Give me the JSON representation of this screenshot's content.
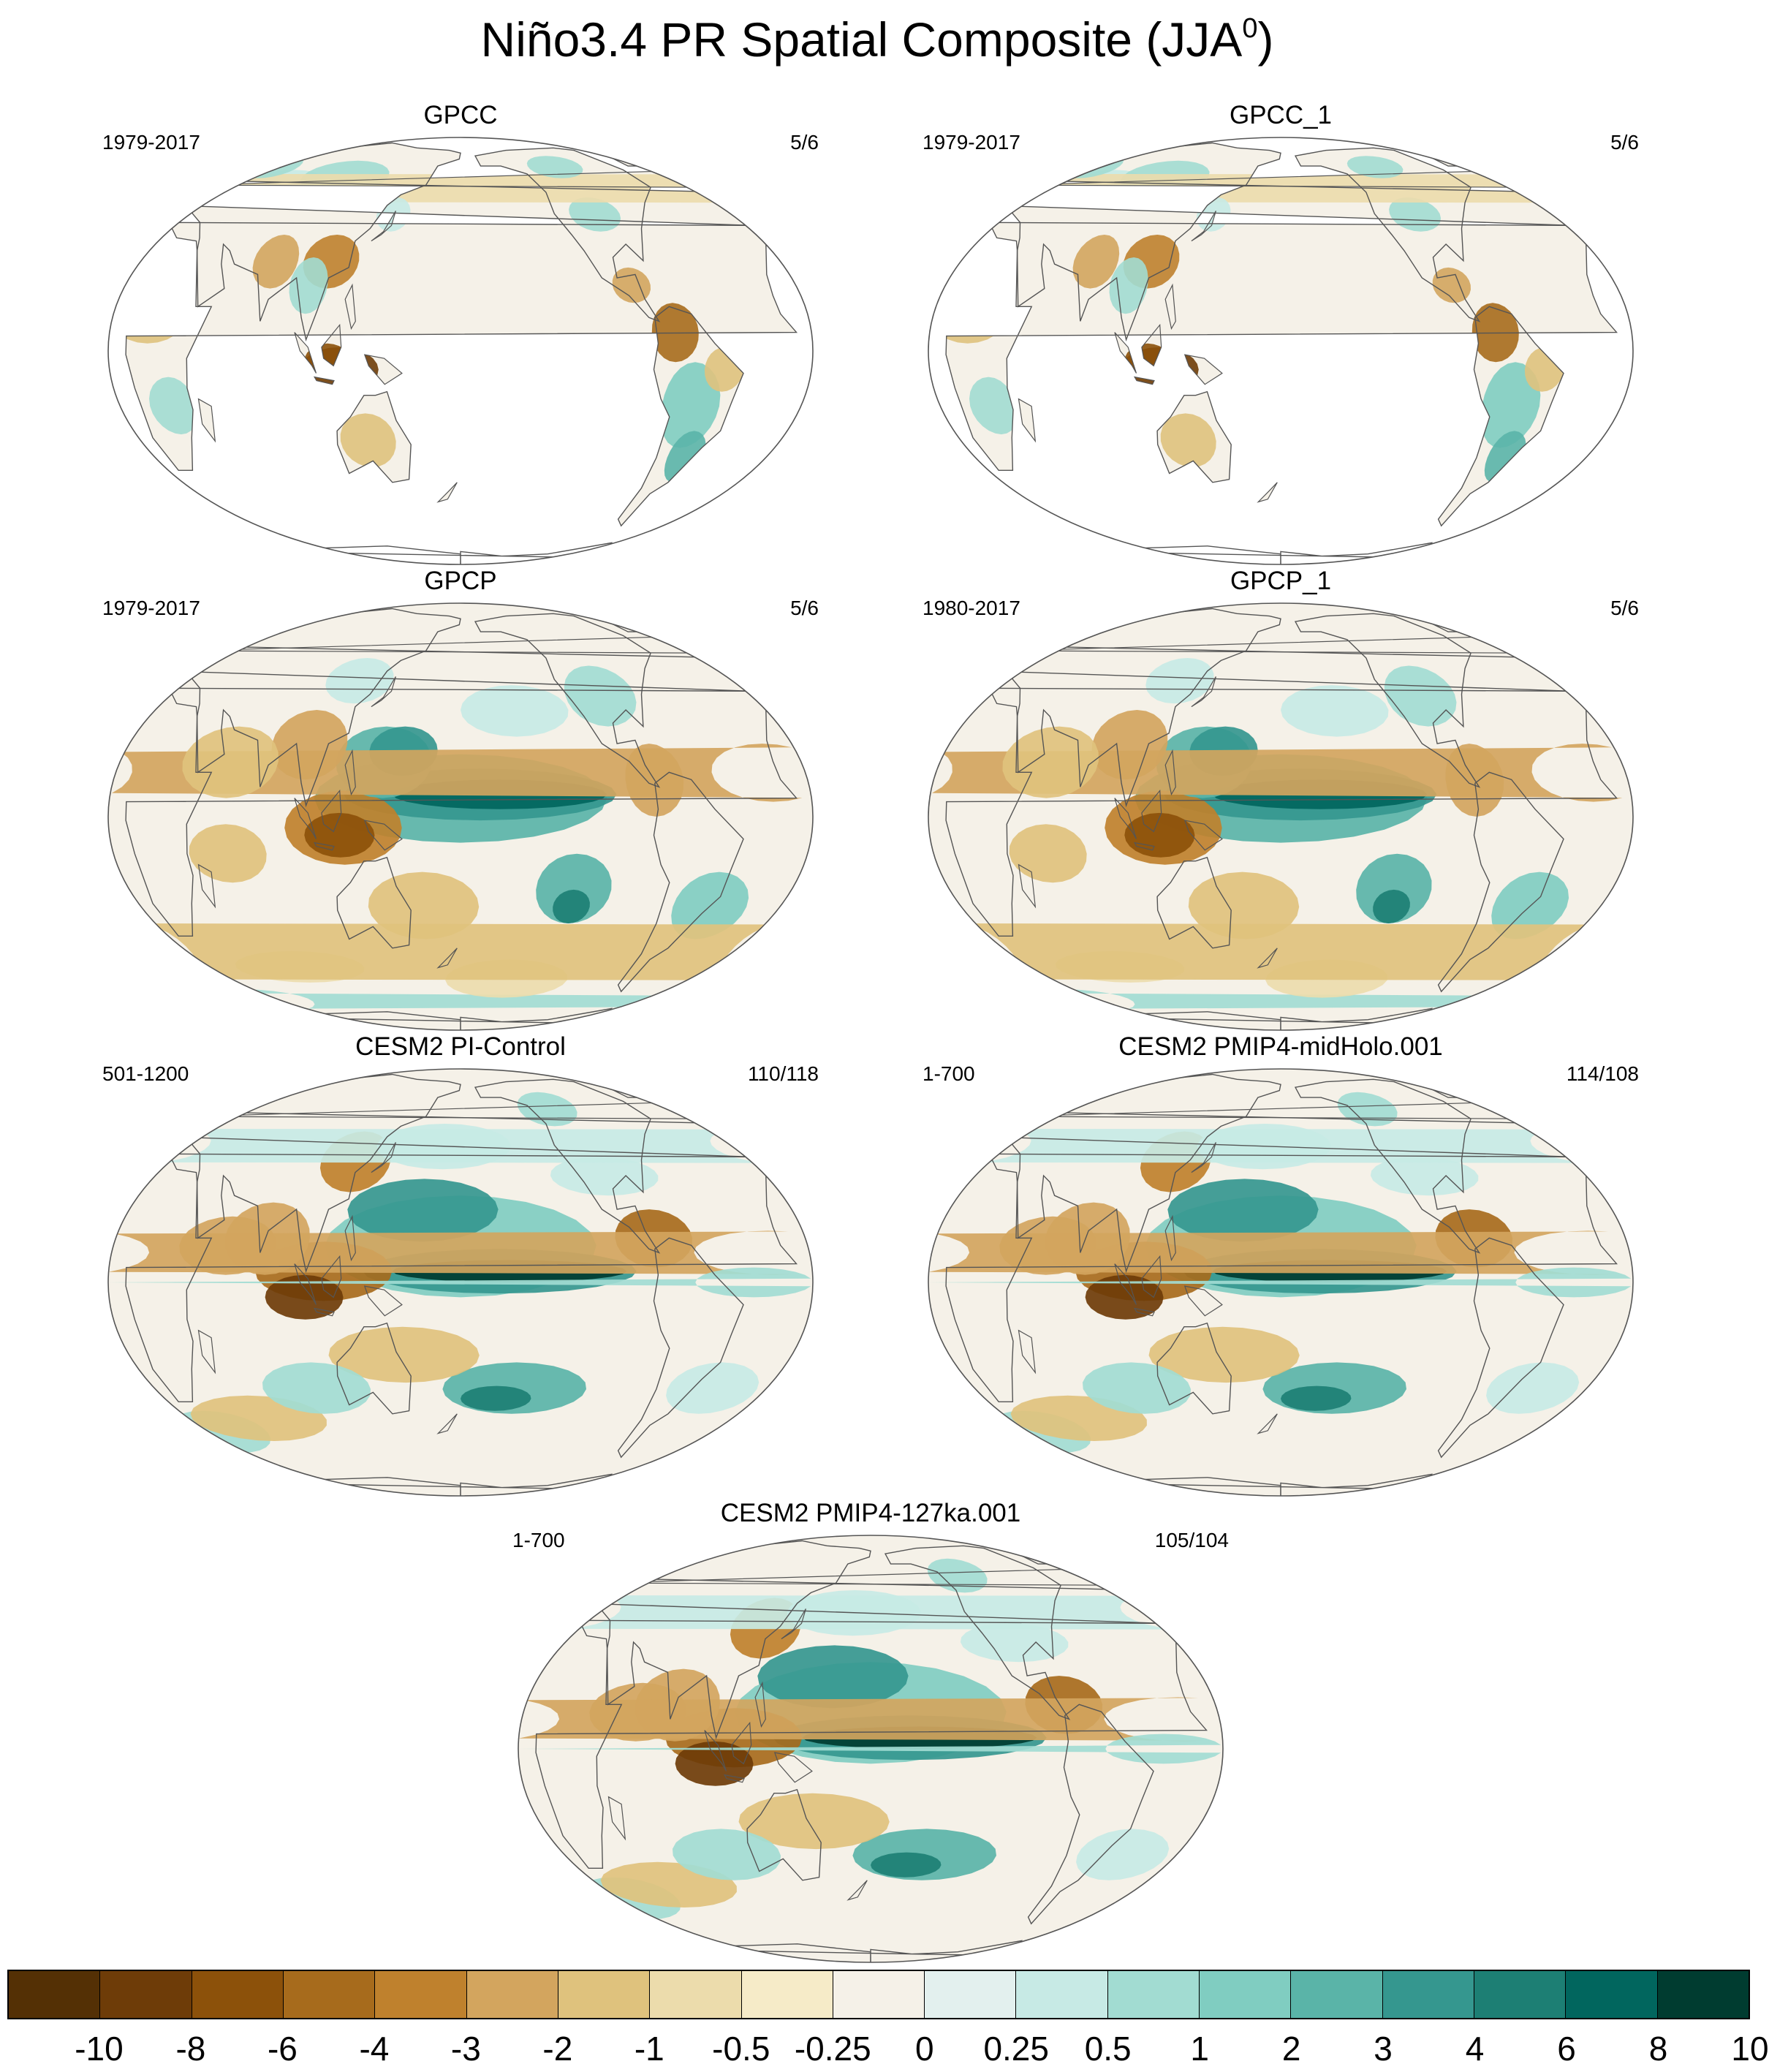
{
  "title": {
    "main": "Niño3.4 PR Spatial Composite (JJA",
    "sup": "0",
    "close": ")"
  },
  "panels": [
    {
      "title": "GPCC",
      "left": "1979-2017",
      "right": "5/6",
      "type": "land"
    },
    {
      "title": "GPCC_1",
      "left": "1979-2017",
      "right": "5/6",
      "type": "land"
    },
    {
      "title": "GPCP",
      "left": "1979-2017",
      "right": "5/6",
      "type": "obs"
    },
    {
      "title": "GPCP_1",
      "left": "1980-2017",
      "right": "5/6",
      "type": "obs"
    },
    {
      "title": "CESM2 PI-Control",
      "left": "501-1200",
      "right": "110/118",
      "type": "model"
    },
    {
      "title": "CESM2 PMIP4-midHolo.001",
      "left": "1-700",
      "right": "114/108",
      "type": "model"
    },
    {
      "title": "CESM2 PMIP4-127ka.001",
      "left": "1-700",
      "right": "105/104",
      "type": "model"
    }
  ],
  "colorbar": {
    "labels": [
      "-10",
      "-8",
      "-6",
      "-4",
      "-3",
      "-2",
      "-1",
      "-0.5",
      "-0.25",
      "0",
      "0.25",
      "0.5",
      "1",
      "2",
      "3",
      "4",
      "6",
      "8",
      "10"
    ],
    "colors": [
      "#543005",
      "#6e3c08",
      "#8c510a",
      "#a76b1c",
      "#bf812d",
      "#d3a55e",
      "#dfc27d",
      "#ecdcac",
      "#f6ebc8",
      "#f5f1e8",
      "#e3f0ee",
      "#c7eae5",
      "#a2dcd2",
      "#80cdc1",
      "#5ab4a8",
      "#35978f",
      "#1d7f74",
      "#01665e",
      "#003c30"
    ]
  }
}
